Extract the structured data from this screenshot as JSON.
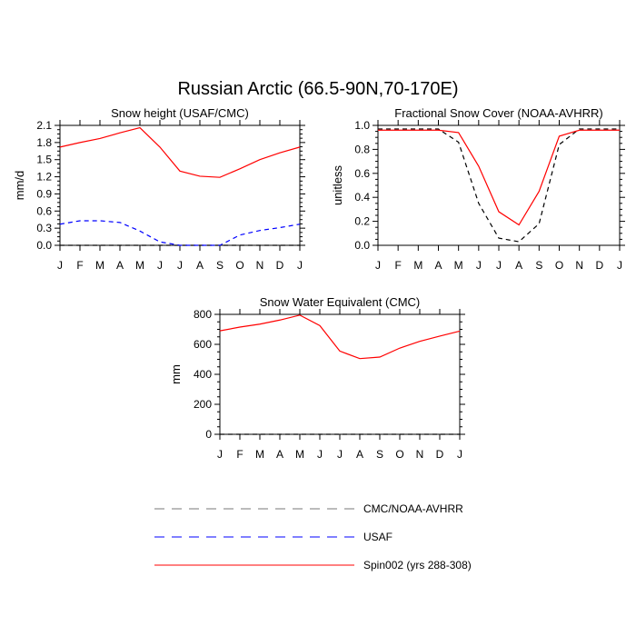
{
  "page_title": "Russian Arctic (66.5-90N,70-170E)",
  "chart_data": [
    {
      "type": "line",
      "title": "Snow height (USAF/CMC)",
      "xlabel": "",
      "ylabel": "mm/d",
      "categories": [
        "J",
        "F",
        "M",
        "A",
        "M",
        "J",
        "J",
        "A",
        "S",
        "O",
        "N",
        "D",
        "J"
      ],
      "ylim": [
        0,
        2.1
      ],
      "yticks": [
        "0.0",
        "0.3",
        "0.6",
        "0.9",
        "1.2",
        "1.5",
        "1.8",
        "2.1"
      ],
      "series": [
        {
          "name": "CMC/NOAA-AVHRR",
          "color": "#000000",
          "style": "dashed",
          "values": [
            0,
            0,
            0,
            0,
            0,
            0,
            0,
            0,
            0,
            0,
            0,
            0,
            0
          ]
        },
        {
          "name": "USAF",
          "color": "#0000ff",
          "style": "dashed",
          "values": [
            0.37,
            0.43,
            0.43,
            0.4,
            0.25,
            0.06,
            0.0,
            0.0,
            0.0,
            0.18,
            0.26,
            0.31,
            0.37
          ]
        },
        {
          "name": "Spin002 (yrs 288-308)",
          "color": "#ff0000",
          "style": "solid",
          "values": [
            1.72,
            1.8,
            1.87,
            1.97,
            2.06,
            1.72,
            1.3,
            1.21,
            1.19,
            1.34,
            1.5,
            1.62,
            1.72
          ]
        }
      ]
    },
    {
      "type": "line",
      "title": "Fractional Snow Cover (NOAA-AVHRR)",
      "xlabel": "",
      "ylabel": "unitless",
      "categories": [
        "J",
        "F",
        "M",
        "A",
        "M",
        "J",
        "J",
        "A",
        "S",
        "O",
        "N",
        "D",
        "J"
      ],
      "ylim": [
        0,
        1.0
      ],
      "yticks": [
        "0.0",
        "0.2",
        "0.4",
        "0.6",
        "0.8",
        "1.0"
      ],
      "series": [
        {
          "name": "CMC/NOAA-AVHRR",
          "color": "#000000",
          "style": "dashed",
          "values": [
            0.97,
            0.97,
            0.97,
            0.97,
            0.86,
            0.35,
            0.06,
            0.03,
            0.18,
            0.84,
            0.97,
            0.97,
            0.97
          ]
        },
        {
          "name": "Spin002 (yrs 288-308)",
          "color": "#ff0000",
          "style": "solid",
          "values": [
            0.96,
            0.96,
            0.96,
            0.96,
            0.94,
            0.66,
            0.28,
            0.17,
            0.45,
            0.91,
            0.96,
            0.96,
            0.96
          ]
        }
      ]
    },
    {
      "type": "line",
      "title": "Snow Water Equivalent (CMC)",
      "xlabel": "",
      "ylabel": "mm",
      "categories": [
        "J",
        "F",
        "M",
        "A",
        "M",
        "J",
        "J",
        "A",
        "S",
        "O",
        "N",
        "D",
        "J"
      ],
      "ylim": [
        0,
        800
      ],
      "yticks": [
        "0",
        "200",
        "400",
        "600",
        "800"
      ],
      "series": [
        {
          "name": "CMC/NOAA-AVHRR",
          "color": "#000000",
          "style": "dashed",
          "values": [
            0,
            0,
            0,
            0,
            0,
            0,
            0,
            0,
            0,
            0,
            0,
            0,
            0
          ]
        },
        {
          "name": "Spin002 (yrs 288-308)",
          "color": "#ff0000",
          "style": "solid",
          "values": [
            690,
            715,
            735,
            762,
            795,
            725,
            555,
            505,
            515,
            575,
            620,
            655,
            688
          ]
        }
      ]
    }
  ],
  "legend": [
    {
      "label": "CMC/NOAA-AVHRR",
      "color": "#777777",
      "style": "dashed"
    },
    {
      "label": "USAF",
      "color": "#0000ff",
      "style": "dashed"
    },
    {
      "label": "Spin002 (yrs 288-308)",
      "color": "#ff0000",
      "style": "solid"
    }
  ]
}
